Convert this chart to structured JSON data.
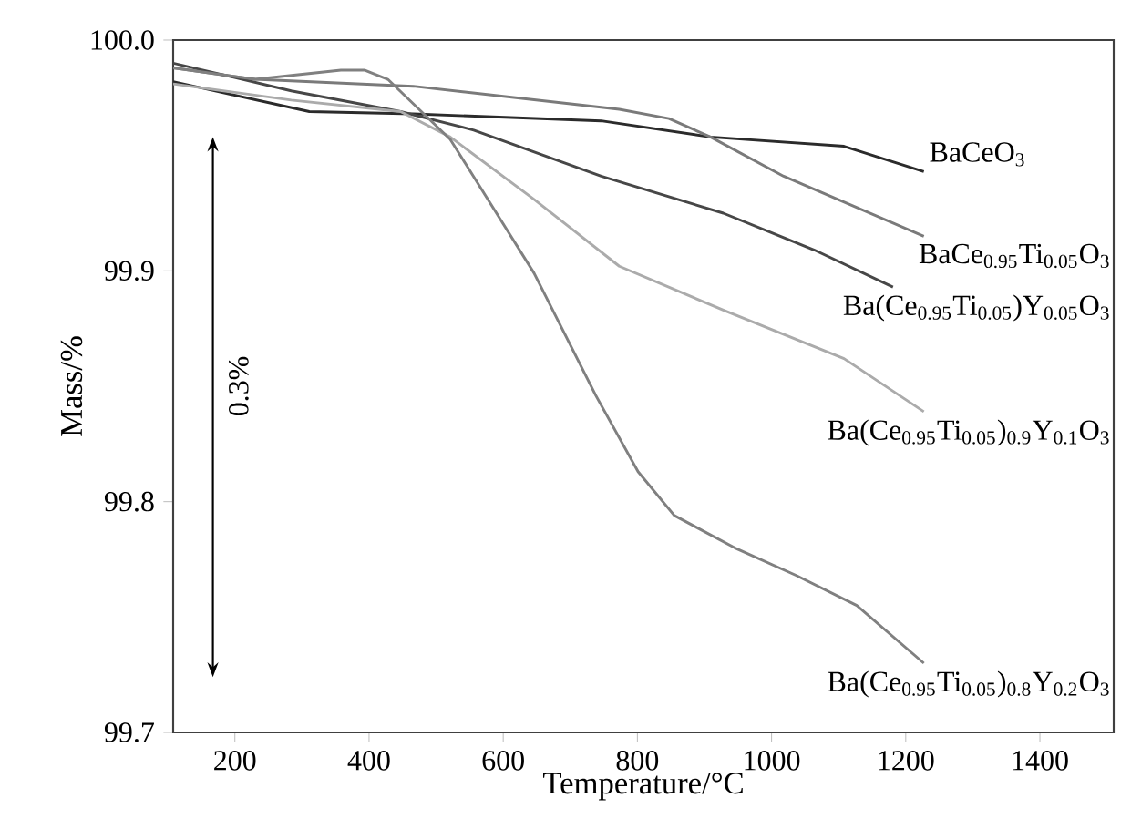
{
  "chart_data": {
    "type": "line",
    "xlabel": "Temperature/°C",
    "ylabel": "Mass/%",
    "xlim": [
      108,
      1510
    ],
    "ylim": [
      99.7,
      100.0
    ],
    "xticks": [
      200,
      400,
      600,
      800,
      1000,
      1200,
      1400
    ],
    "yticks": [
      {
        "value": 99.7,
        "label": "99.7"
      },
      {
        "value": 99.8,
        "label": "99.8"
      },
      {
        "value": 99.9,
        "label": "99.9"
      },
      {
        "value": 100.0,
        "label": "100.0"
      }
    ],
    "grid": false,
    "legend": false,
    "marker": "none",
    "line_style": "solid",
    "annotations": [
      "0.3%"
    ],
    "series": [
      {
        "name": "BaCeO$_{3}$",
        "color": "#2b2b2b",
        "x": [
          108,
          311,
          466,
          746,
          909,
          1108,
          1227
        ],
        "values": [
          99.982,
          99.969,
          99.968,
          99.965,
          99.958,
          99.954,
          99.943
        ]
      },
      {
        "name": "BaCe$_{0.95}$Ti$_{0.05}$O$_{3}$",
        "color": "#7a7a7a",
        "x": [
          108,
          230,
          466,
          773,
          847,
          909,
          1018,
          1227
        ],
        "values": [
          99.988,
          99.983,
          99.98,
          99.97,
          99.966,
          99.958,
          99.941,
          99.915
        ]
      },
      {
        "name": "Ba(Ce$_{0.95}$Ti$_{0.05}$)Y$_{0.05}$O$_{3}$",
        "color": "#474747",
        "x": [
          108,
          284,
          447,
          556,
          746,
          928,
          1064,
          1181
        ],
        "values": [
          99.99,
          99.978,
          99.969,
          99.961,
          99.941,
          99.925,
          99.909,
          99.893
        ]
      },
      {
        "name": "Ba(Ce$_{0.95}$Ti$_{0.05}$)$_{0.9}$Y$_{0.1}$O$_{3}$",
        "color": "#ababab",
        "x": [
          108,
          284,
          447,
          521,
          646,
          773,
          928,
          1108,
          1227
        ],
        "values": [
          99.981,
          99.974,
          99.969,
          99.958,
          99.931,
          99.902,
          99.883,
          99.862,
          99.839
        ]
      },
      {
        "name": "Ba(Ce$_{0.95}$Ti$_{0.05}$)$_{0.8}$Y$_{0.2}$O$_{3}$",
        "color": "#808080",
        "x": [
          108,
          230,
          358,
          393,
          428,
          521,
          646,
          738,
          801,
          855,
          945,
          1037,
          1127,
          1227
        ],
        "values": [
          99.988,
          99.983,
          99.987,
          99.987,
          99.983,
          99.957,
          99.899,
          99.846,
          99.813,
          99.794,
          99.78,
          99.768,
          99.755,
          99.73
        ]
      }
    ]
  }
}
